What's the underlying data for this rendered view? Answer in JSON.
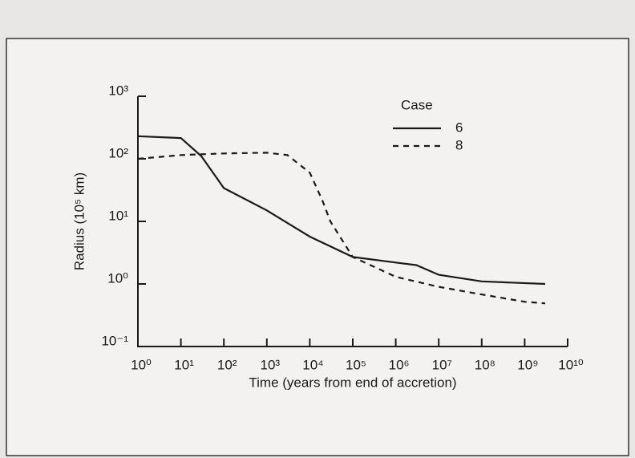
{
  "chart_data": {
    "type": "line",
    "xlabel": "Time (years from end of accretion)",
    "ylabel": "Radius (10⁵ km)",
    "legend_title": "Case",
    "xscale": "log",
    "yscale": "log",
    "xlim": [
      1,
      10000000000
    ],
    "ylim": [
      0.1,
      1000
    ],
    "xticks": [
      {
        "value": 1,
        "label": "10⁰"
      },
      {
        "value": 10,
        "label": "10¹"
      },
      {
        "value": 100,
        "label": "10²"
      },
      {
        "value": 1000,
        "label": "10³"
      },
      {
        "value": 10000,
        "label": "10⁴"
      },
      {
        "value": 100000,
        "label": "10⁵"
      },
      {
        "value": 1000000,
        "label": "10⁶"
      },
      {
        "value": 10000000,
        "label": "10⁷"
      },
      {
        "value": 100000000,
        "label": "10⁸"
      },
      {
        "value": 1000000000,
        "label": "10⁹"
      },
      {
        "value": 10000000000,
        "label": "10¹⁰"
      }
    ],
    "yticks": [
      {
        "value": 0.1,
        "label": "10⁻¹"
      },
      {
        "value": 1,
        "label": "10⁰"
      },
      {
        "value": 10,
        "label": "10¹"
      },
      {
        "value": 100,
        "label": "10²"
      },
      {
        "value": 1000,
        "label": "10³"
      }
    ],
    "series": [
      {
        "name": "6",
        "color": "#1a1a1a",
        "dash": "solid",
        "x": [
          1,
          10,
          30,
          100,
          1000,
          10000,
          100000,
          1000000,
          3000000,
          10000000,
          100000000,
          3000000000
        ],
        "values": [
          230,
          215,
          110,
          34,
          15,
          5.7,
          2.7,
          2.2,
          2.0,
          1.4,
          1.1,
          1.0
        ]
      },
      {
        "name": "8",
        "color": "#1a1a1a",
        "dash": "dashed",
        "x": [
          1,
          10,
          100,
          1000,
          3000,
          10000,
          20000,
          30000,
          100000,
          1000000,
          10000000,
          100000000,
          1000000000,
          3000000000
        ],
        "values": [
          100,
          115,
          122,
          125,
          115,
          60,
          21,
          10,
          2.7,
          1.3,
          0.9,
          0.68,
          0.52,
          0.49
        ]
      }
    ]
  }
}
